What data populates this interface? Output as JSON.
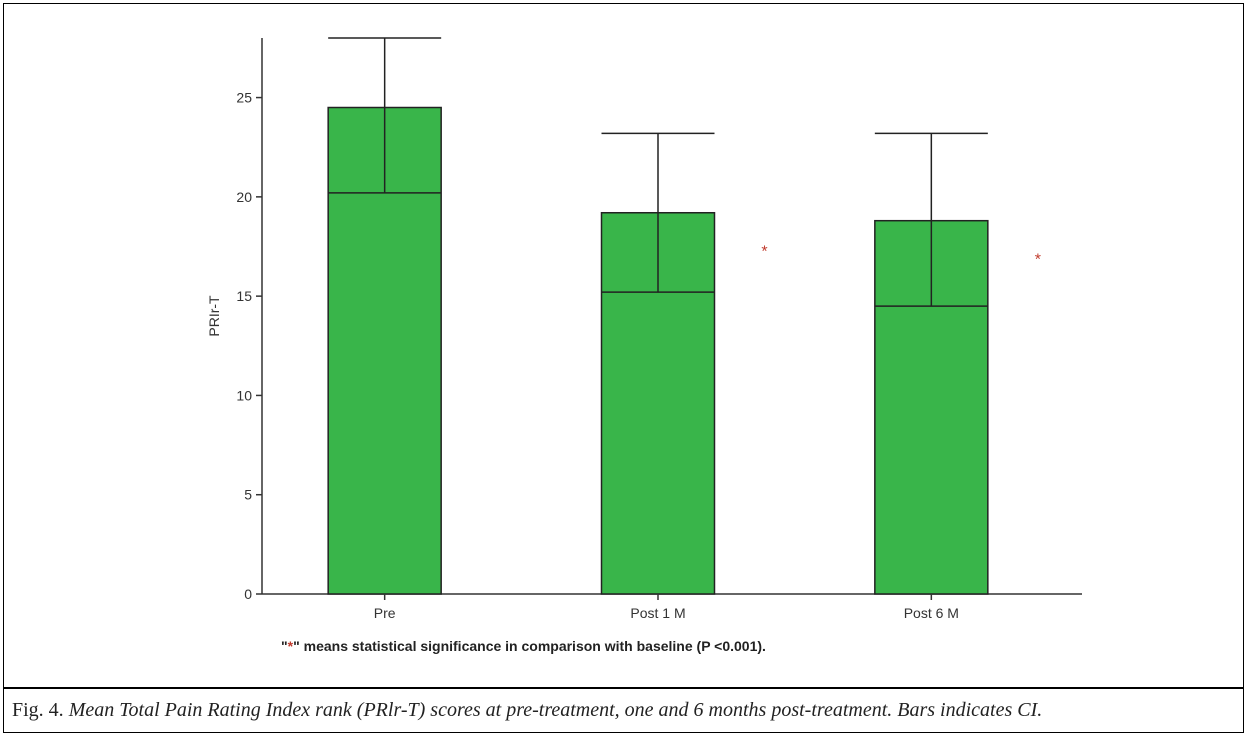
{
  "chart_data": {
    "type": "bar",
    "categories": [
      "Pre",
      "Post 1 M",
      "Post 6 M"
    ],
    "values": [
      24.5,
      19.2,
      18.8
    ],
    "ci_lower": [
      20.2,
      15.2,
      14.5
    ],
    "ci_upper": [
      28.0,
      23.2,
      23.2
    ],
    "ylabel": "PRIr-T",
    "xlabel": "",
    "ylim": [
      0,
      28
    ],
    "yticks": [
      0,
      5,
      10,
      15,
      20,
      25
    ],
    "significance_markers": [
      "",
      "*",
      "*"
    ],
    "bar_color": "#39b54a",
    "marker_color": "#c0392b",
    "grid": false
  },
  "footnote": {
    "marker": "*",
    "text": " means statistical significance in comparison with baseline (P <0.001)."
  },
  "caption": {
    "label": "Fig. 4.",
    "text": "Mean Total Pain Rating Index rank (PRlr-T) scores at pre-treatment, one and 6 months post-treatment. Bars indicates CI."
  }
}
